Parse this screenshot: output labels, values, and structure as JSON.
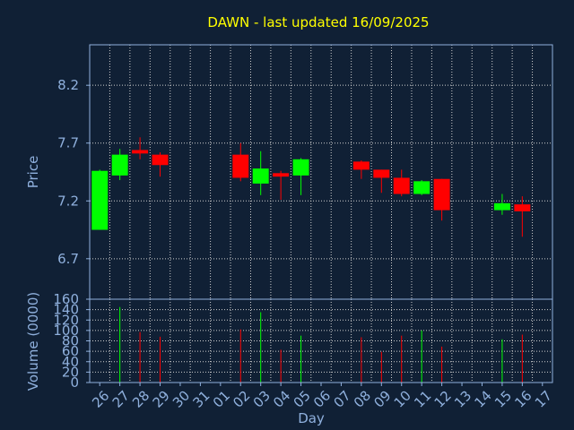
{
  "chart_data": [
    {
      "type": "candlestick",
      "title": "DAWN - last updated 16/09/2025",
      "ylabel": "Price",
      "ylim": [
        6.35,
        8.55
      ],
      "yticks": [
        "6.7",
        "7.2",
        "7.7",
        "8.2"
      ],
      "ytick_values": [
        6.7,
        7.2,
        7.7,
        8.2
      ],
      "grid": true,
      "up_color": "#00ff00",
      "down_color": "#ff0000",
      "candles": [
        {
          "x": "26",
          "open": 6.95,
          "high": 7.47,
          "low": 6.95,
          "close": 7.46
        },
        {
          "x": "27",
          "open": 7.42,
          "high": 7.65,
          "low": 7.38,
          "close": 7.6
        },
        {
          "x": "28",
          "open": 7.64,
          "high": 7.75,
          "low": 7.56,
          "close": 7.61
        },
        {
          "x": "29",
          "open": 7.6,
          "high": 7.62,
          "low": 7.41,
          "close": 7.51
        },
        {
          "x": "02",
          "open": 7.6,
          "high": 7.7,
          "low": 7.37,
          "close": 7.4
        },
        {
          "x": "03",
          "open": 7.35,
          "high": 7.63,
          "low": 7.25,
          "close": 7.48
        },
        {
          "x": "04",
          "open": 7.44,
          "high": 7.46,
          "low": 7.21,
          "close": 7.41
        },
        {
          "x": "05",
          "open": 7.42,
          "high": 7.57,
          "low": 7.25,
          "close": 7.56
        },
        {
          "x": "08",
          "open": 7.54,
          "high": 7.55,
          "low": 7.39,
          "close": 7.47
        },
        {
          "x": "09",
          "open": 7.47,
          "high": 7.47,
          "low": 7.27,
          "close": 7.4
        },
        {
          "x": "10",
          "open": 7.4,
          "high": 7.47,
          "low": 7.24,
          "close": 7.26
        },
        {
          "x": "11",
          "open": 7.26,
          "high": 7.38,
          "low": 7.25,
          "close": 7.37
        },
        {
          "x": "12",
          "open": 7.39,
          "high": 7.39,
          "low": 7.03,
          "close": 7.12
        },
        {
          "x": "15",
          "open": 7.12,
          "high": 7.26,
          "low": 7.08,
          "close": 7.18
        },
        {
          "x": "16",
          "open": 7.17,
          "high": 7.24,
          "low": 6.89,
          "close": 7.11
        }
      ]
    },
    {
      "type": "bar",
      "ylabel": "Volume (0000)",
      "xlabel": "Day",
      "ylim": [
        0,
        160
      ],
      "yticks": [
        "0",
        "20",
        "40",
        "60",
        "80",
        "100",
        "120",
        "140",
        "160"
      ],
      "ytick_values": [
        0,
        20,
        40,
        60,
        80,
        100,
        120,
        140,
        160
      ],
      "categories": [
        "26",
        "27",
        "28",
        "29",
        "30",
        "31",
        "01",
        "02",
        "03",
        "04",
        "05",
        "06",
        "07",
        "08",
        "09",
        "10",
        "11",
        "12",
        "13",
        "14",
        "15",
        "16",
        "17"
      ],
      "bars": [
        {
          "x": "27",
          "value": 145,
          "color": "#00ff00"
        },
        {
          "x": "28",
          "value": 97,
          "color": "#ff0000"
        },
        {
          "x": "29",
          "value": 88,
          "color": "#ff0000"
        },
        {
          "x": "02",
          "value": 102,
          "color": "#ff0000"
        },
        {
          "x": "03",
          "value": 135,
          "color": "#00ff00"
        },
        {
          "x": "04",
          "value": 63,
          "color": "#ff0000"
        },
        {
          "x": "05",
          "value": 90,
          "color": "#00ff00"
        },
        {
          "x": "08",
          "value": 87,
          "color": "#ff0000"
        },
        {
          "x": "09",
          "value": 59,
          "color": "#ff0000"
        },
        {
          "x": "10",
          "value": 90,
          "color": "#ff0000"
        },
        {
          "x": "11",
          "value": 100,
          "color": "#00ff00"
        },
        {
          "x": "12",
          "value": 69,
          "color": "#ff0000"
        },
        {
          "x": "15",
          "value": 83,
          "color": "#00ff00"
        },
        {
          "x": "16",
          "value": 92,
          "color": "#ff0000"
        }
      ]
    }
  ]
}
